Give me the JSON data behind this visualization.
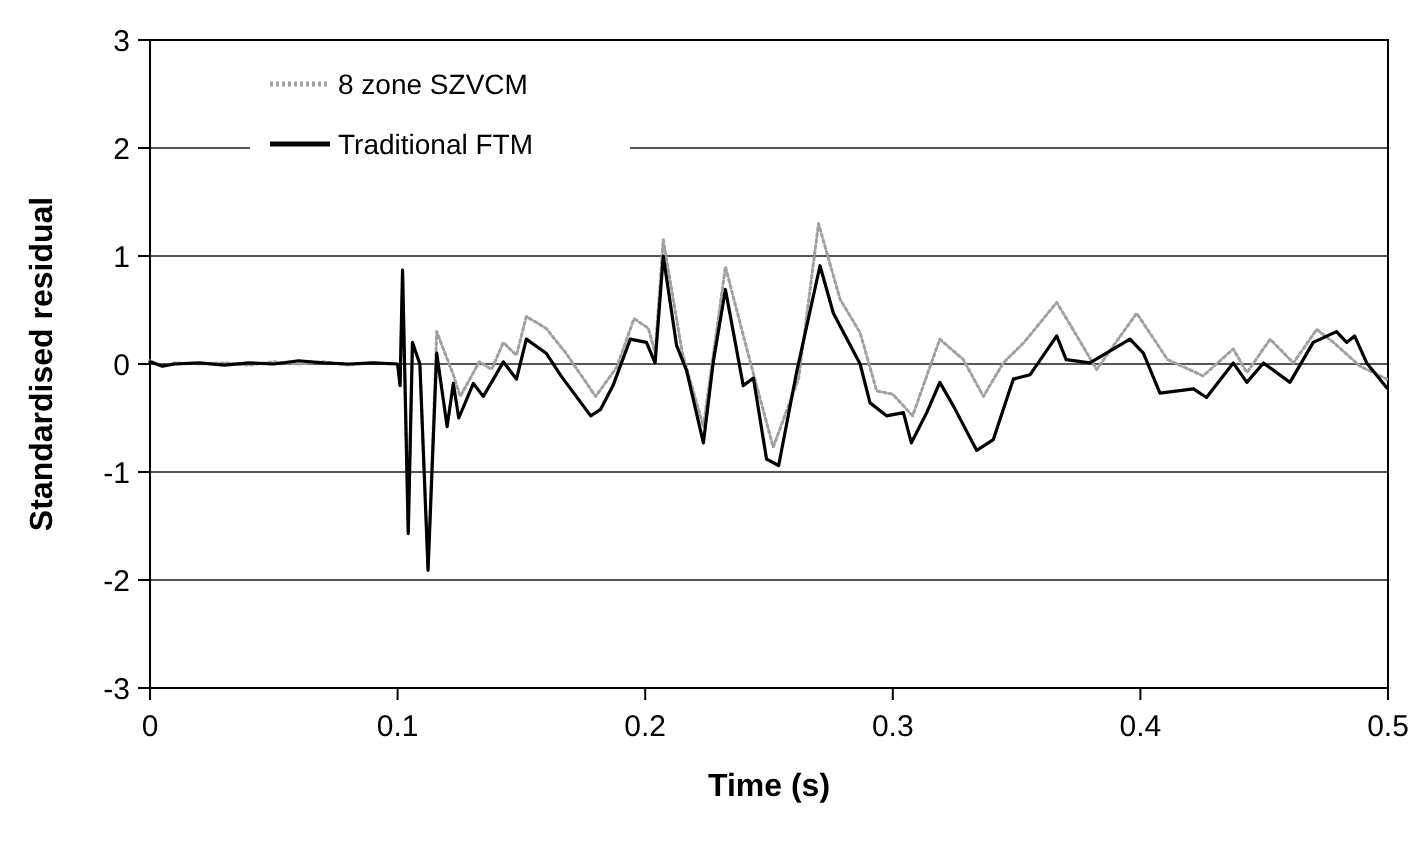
{
  "chart_data": {
    "type": "line",
    "xlabel": "Time (s)",
    "ylabel": "Standardised residual",
    "xlim": [
      0,
      0.5
    ],
    "xticks": [
      0,
      0.1,
      0.2,
      0.3,
      0.4,
      0.5
    ],
    "ylim": [
      -3,
      3
    ],
    "yticks": [
      -3,
      -2,
      -1,
      0,
      1,
      2,
      3
    ],
    "grid": "y",
    "legend": "top left",
    "marker": "none",
    "series": [
      {
        "name": "8 zone SZVCM",
        "color": "#a0a0a0",
        "line_style": "dotted",
        "x": [
          0,
          0.005,
          0.01,
          0.02,
          0.03,
          0.04,
          0.05,
          0.06,
          0.07,
          0.08,
          0.09,
          0.1,
          0.101,
          0.102,
          0.1043,
          0.106,
          0.109,
          0.1123,
          0.1158,
          0.1225,
          0.1253,
          0.133,
          0.138,
          0.1427,
          0.148,
          0.152,
          0.16,
          0.168,
          0.18,
          0.1885,
          0.1955,
          0.2013,
          0.204,
          0.2073,
          0.215,
          0.2235,
          0.2324,
          0.2423,
          0.2517,
          0.262,
          0.27,
          0.2787,
          0.2868,
          0.2935,
          0.3,
          0.308,
          0.319,
          0.3285,
          0.3366,
          0.3446,
          0.353,
          0.3662,
          0.372,
          0.3823,
          0.3985,
          0.411,
          0.4253,
          0.4375,
          0.443,
          0.4524,
          0.4618,
          0.4712,
          0.478,
          0.4887,
          0.4995
        ],
        "values": [
          0.03,
          -0.02,
          0.01,
          0,
          0.01,
          -0.01,
          0.02,
          0,
          0.02,
          -0.01,
          0.01,
          0,
          -0.2,
          0.85,
          -1.57,
          0.2,
          0,
          -1.9,
          0.3,
          -0.1,
          -0.3,
          0.02,
          -0.05,
          0.2,
          0.08,
          0.44,
          0.33,
          0.1,
          -0.3,
          -0.03,
          0.42,
          0.33,
          0.1,
          1.15,
          0.1,
          -0.58,
          0.9,
          0.03,
          -0.77,
          -0.13,
          1.3,
          0.6,
          0.29,
          -0.25,
          -0.28,
          -0.48,
          0.23,
          0.04,
          -0.3,
          0.01,
          0.2,
          0.57,
          0.35,
          -0.05,
          0.47,
          0.04,
          -0.11,
          0.14,
          -0.08,
          0.23,
          0.01,
          0.32,
          0.2,
          -0.02,
          -0.14
        ]
      },
      {
        "name": "Traditional FTM",
        "color": "#000000",
        "line_style": "solid",
        "x": [
          0,
          0.005,
          0.01,
          0.02,
          0.03,
          0.04,
          0.05,
          0.06,
          0.07,
          0.08,
          0.09,
          0.1,
          0.101,
          0.102,
          0.1043,
          0.106,
          0.109,
          0.1123,
          0.1158,
          0.12,
          0.1225,
          0.1247,
          0.1306,
          0.1346,
          0.1387,
          0.1427,
          0.148,
          0.152,
          0.16,
          0.166,
          0.178,
          0.182,
          0.187,
          0.194,
          0.2005,
          0.204,
          0.2073,
          0.2127,
          0.2167,
          0.2235,
          0.2275,
          0.2324,
          0.2396,
          0.2437,
          0.249,
          0.2539,
          0.2612,
          0.2706,
          0.276,
          0.2868,
          0.2908,
          0.2975,
          0.3043,
          0.3075,
          0.3137,
          0.319,
          0.3245,
          0.3339,
          0.3406,
          0.3487,
          0.3554,
          0.3662,
          0.37,
          0.3796,
          0.3958,
          0.4012,
          0.4079,
          0.4214,
          0.4267,
          0.4375,
          0.443,
          0.4497,
          0.4604,
          0.4698,
          0.4792,
          0.4833,
          0.4865,
          0.4914,
          0.4995
        ],
        "values": [
          0.02,
          -0.02,
          0,
          0.01,
          -0.01,
          0.01,
          0,
          0.03,
          0.01,
          0,
          0.01,
          0,
          -0.2,
          0.87,
          -1.57,
          0.2,
          0,
          -1.91,
          0.1,
          -0.58,
          -0.18,
          -0.5,
          -0.18,
          -0.3,
          -0.14,
          0.02,
          -0.14,
          0.23,
          0.1,
          -0.11,
          -0.48,
          -0.42,
          -0.2,
          0.23,
          0.2,
          0.01,
          1.0,
          0.17,
          -0.06,
          -0.73,
          0.02,
          0.69,
          -0.2,
          -0.13,
          -0.88,
          -0.94,
          -0.07,
          0.91,
          0.47,
          0,
          -0.36,
          -0.48,
          -0.45,
          -0.73,
          -0.45,
          -0.17,
          -0.39,
          -0.8,
          -0.7,
          -0.14,
          -0.1,
          0.26,
          0.04,
          0.01,
          0.23,
          0.1,
          -0.27,
          -0.23,
          -0.31,
          0.01,
          -0.17,
          0.01,
          -0.17,
          0.2,
          0.3,
          0.2,
          0.26,
          0.01,
          -0.22
        ]
      }
    ]
  }
}
